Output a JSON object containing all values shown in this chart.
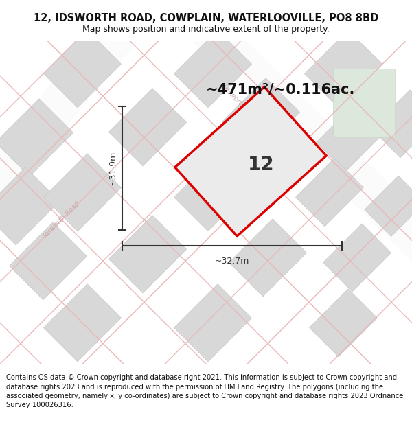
{
  "title": "12, IDSWORTH ROAD, COWPLAIN, WATERLOOVILLE, PO8 8BD",
  "subtitle": "Map shows position and indicative extent of the property.",
  "area_label": "~471m²/~0.116ac.",
  "property_number": "12",
  "dim_width": "~32.7m",
  "dim_height": "~31.9m",
  "footer": "Contains OS data © Crown copyright and database right 2021. This information is subject to Crown copyright and database rights 2023 and is reproduced with the permission of HM Land Registry. The polygons (including the associated geometry, namely x, y co-ordinates) are subject to Crown copyright and database rights 2023 Ordnance Survey 100026316.",
  "map_bg": "#f0f0f0",
  "plot_outline_color": "#dd0000",
  "plot_fill_color": "#e8e8e8",
  "building_color": "#d8d8d8",
  "building_ec": "#c8c8c8",
  "road_line_color": "#e8b8b8",
  "road_label_color": "#c8a8a8",
  "dim_color": "#333333",
  "title_fontsize": 10.5,
  "subtitle_fontsize": 9,
  "area_fontsize": 15,
  "number_fontsize": 20,
  "dim_fontsize": 9,
  "footer_fontsize": 7.2,
  "green_area_color": "#dce8dc",
  "green_area_ec": "#c8d8c8",
  "white_road_color": "#f8f8f8"
}
